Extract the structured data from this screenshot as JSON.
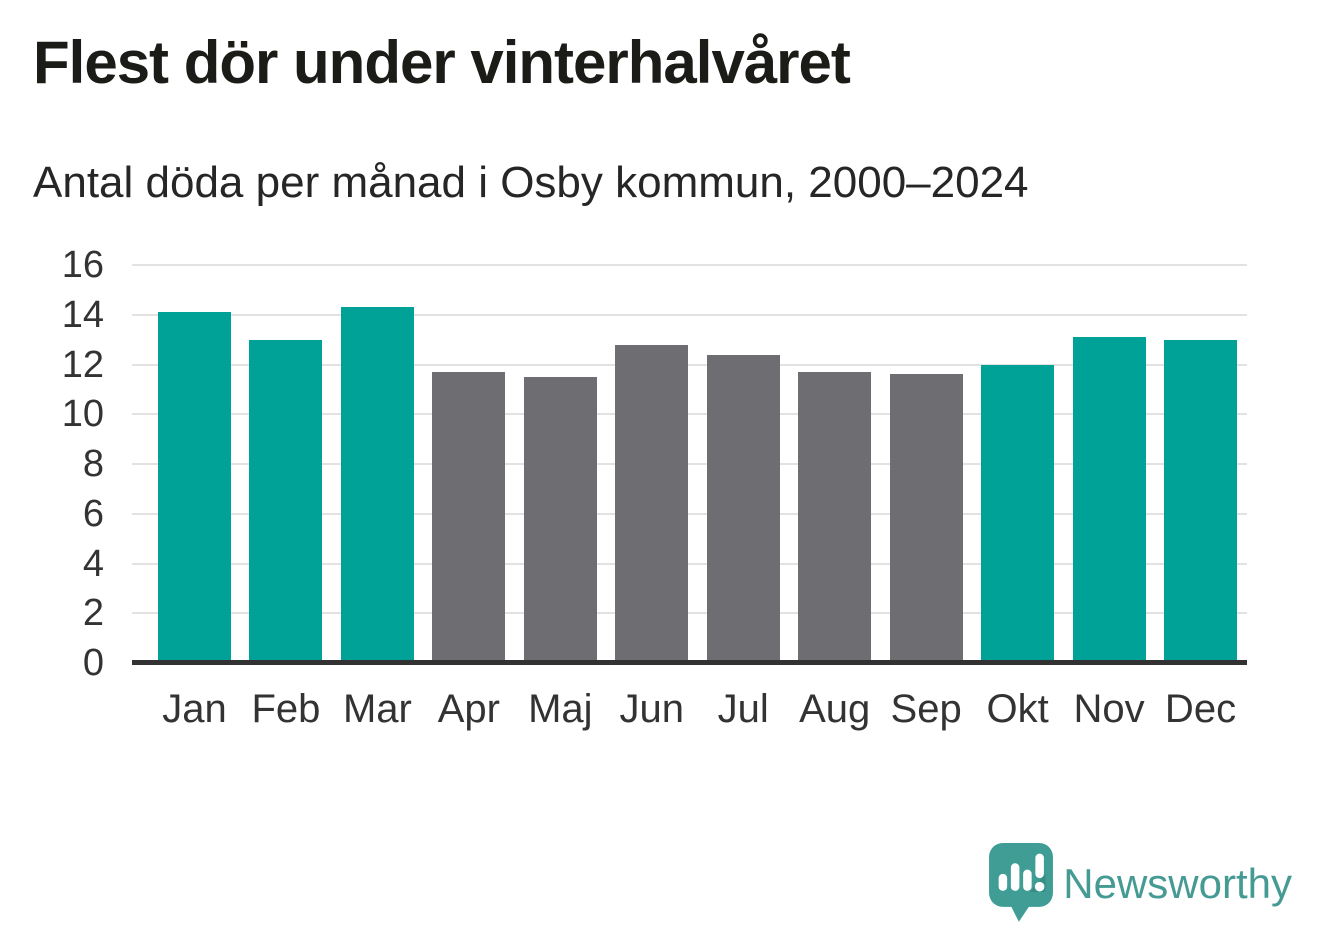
{
  "header": {
    "title": "Flest dör under vinterhalvåret",
    "subtitle": "Antal döda per månad i Osby kommun, 2000–2024"
  },
  "branding": {
    "logo_text": "Newsworthy",
    "logo_icon": "speech-bubble-bar-chart-exclamation-icon"
  },
  "colors": {
    "winter_bar": "#00a196",
    "summer_bar": "#6d6d72",
    "grid": "#e2e2e2",
    "axis": "#323232",
    "logo_teal": "#459a93",
    "logo_bubble": "#3f9d95"
  },
  "chart_data": {
    "type": "bar",
    "title": "Flest dör under vinterhalvåret",
    "subtitle": "Antal döda per månad i Osby kommun, 2000–2024",
    "categories": [
      "Jan",
      "Feb",
      "Mar",
      "Apr",
      "Maj",
      "Jun",
      "Jul",
      "Aug",
      "Sep",
      "Okt",
      "Nov",
      "Dec"
    ],
    "values": [
      14.1,
      13.0,
      14.3,
      11.7,
      11.5,
      12.8,
      12.4,
      11.7,
      11.6,
      12.0,
      13.1,
      13.0
    ],
    "bar_groups": [
      "winter",
      "winter",
      "winter",
      "summer",
      "summer",
      "summer",
      "summer",
      "summer",
      "summer",
      "winter",
      "winter",
      "winter"
    ],
    "xlabel": "",
    "ylabel": "",
    "ylim": [
      0,
      16
    ],
    "yticks": [
      0,
      2,
      4,
      6,
      8,
      10,
      12,
      14,
      16
    ],
    "grid": true,
    "legend": "none"
  }
}
